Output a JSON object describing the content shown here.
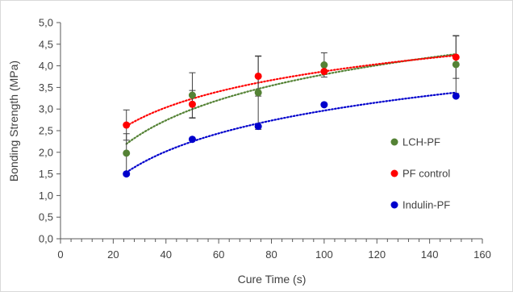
{
  "chart_data": {
    "type": "scatter",
    "xlabel": "Cure Time (s)",
    "ylabel": "Bonding Strength (MPa)",
    "xlim": [
      0,
      160
    ],
    "ylim": [
      0,
      5
    ],
    "x_ticks": [
      0,
      20,
      40,
      60,
      80,
      100,
      120,
      140,
      160
    ],
    "y_ticks": [
      0,
      0.5,
      1,
      1.5,
      2,
      2.5,
      3,
      3.5,
      4,
      4.5,
      5
    ],
    "x_tick_labels": [
      "0",
      "20",
      "40",
      "60",
      "80",
      "100",
      "120",
      "140",
      "160"
    ],
    "y_tick_labels": [
      "0,0",
      "0,5",
      "1,0",
      "1,5",
      "2,0",
      "2,5",
      "3,0",
      "3,5",
      "4,0",
      "4,5",
      "5,0"
    ],
    "grid": false,
    "legend_position": "right",
    "trendline": "logarithmic, dotted",
    "series": [
      {
        "name": "LCH-PF",
        "color": "#548235",
        "x": [
          25,
          50,
          75,
          100,
          150
        ],
        "y": [
          1.98,
          3.32,
          3.38,
          4.02,
          4.03
        ],
        "error": [
          0.45,
          0.52,
          0.85,
          0.28,
          0.67
        ]
      },
      {
        "name": "PF control",
        "color": "#ff0000",
        "x": [
          25,
          50,
          75,
          100,
          150
        ],
        "y": [
          2.63,
          3.11,
          3.76,
          3.87,
          4.2
        ],
        "error": [
          0.35,
          0.32,
          0.46,
          0.0,
          0.49
        ]
      },
      {
        "name": "Indulin-PF",
        "color": "#0000cc",
        "x": [
          25,
          50,
          75,
          100,
          150
        ],
        "y": [
          1.5,
          2.3,
          2.6,
          3.1,
          3.3
        ],
        "error": [
          0,
          0,
          0,
          0,
          0
        ]
      }
    ]
  }
}
